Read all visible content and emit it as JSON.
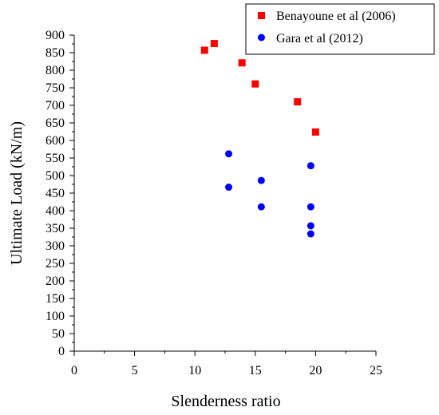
{
  "chart_data": {
    "type": "scatter",
    "xlabel": "Slenderness ratio",
    "ylabel": "Ultimate Load (kN/m)",
    "xlim": [
      0,
      25
    ],
    "ylim": [
      0,
      900
    ],
    "xticks": [
      0,
      5,
      10,
      15,
      20,
      25
    ],
    "yticks": [
      0,
      50,
      100,
      150,
      200,
      250,
      300,
      350,
      400,
      450,
      500,
      550,
      600,
      650,
      700,
      750,
      800,
      850,
      900
    ],
    "grid": false,
    "legend_position": "top-right",
    "series": [
      {
        "name": "Benayoune et al (2006)",
        "marker": "square",
        "color": "#ff0000",
        "points": [
          {
            "x": 10.8,
            "y": 857
          },
          {
            "x": 11.6,
            "y": 876
          },
          {
            "x": 13.9,
            "y": 821
          },
          {
            "x": 15.0,
            "y": 761
          },
          {
            "x": 18.5,
            "y": 710
          },
          {
            "x": 20.0,
            "y": 624
          }
        ]
      },
      {
        "name": "Gara et al (2012)",
        "marker": "circle",
        "color": "#0000ff",
        "points": [
          {
            "x": 12.8,
            "y": 562
          },
          {
            "x": 12.8,
            "y": 467
          },
          {
            "x": 15.5,
            "y": 486
          },
          {
            "x": 15.5,
            "y": 411
          },
          {
            "x": 19.6,
            "y": 528
          },
          {
            "x": 19.6,
            "y": 411
          },
          {
            "x": 19.6,
            "y": 357
          },
          {
            "x": 19.6,
            "y": 334
          }
        ]
      }
    ]
  }
}
